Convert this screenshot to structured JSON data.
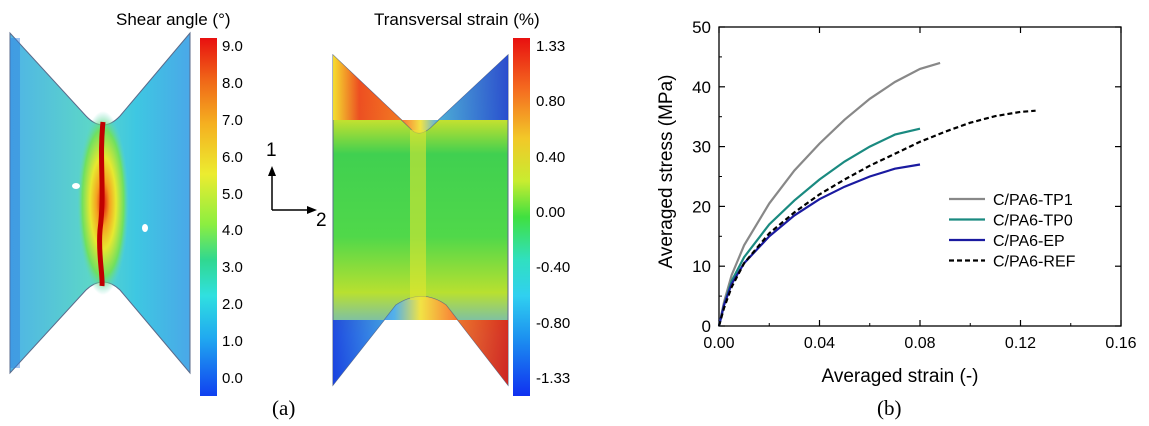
{
  "panel_a": {
    "label": "(a)",
    "shear": {
      "title": "Shear angle (°)",
      "ticks": [
        "9.0",
        "8.0",
        "7.0",
        "6.0",
        "5.0",
        "4.0",
        "3.0",
        "2.0",
        "1.0",
        "0.0"
      ]
    },
    "transversal": {
      "title": "Transversal strain (%)",
      "ticks": [
        "1.33",
        "0.80",
        "0.40",
        "0.00",
        "-0.40",
        "-0.80",
        "-1.33"
      ]
    },
    "axes": {
      "dir1": "1",
      "dir2": "2"
    }
  },
  "panel_b_label": "(b)",
  "chart_data": {
    "type": "line",
    "xlabel": "Averaged strain (-)",
    "ylabel": "Averaged stress (MPa)",
    "xlim": [
      0,
      0.16
    ],
    "ylim": [
      0,
      50
    ],
    "xticks": [
      "0.00",
      "0.04",
      "0.08",
      "0.12",
      "0.16"
    ],
    "yticks": [
      "0",
      "10",
      "20",
      "30",
      "40",
      "50"
    ],
    "legend_position": "right",
    "series": [
      {
        "name": "C/PA6-TP1",
        "color": "#888888",
        "dash": "solid",
        "x": [
          0,
          0.002,
          0.005,
          0.01,
          0.02,
          0.03,
          0.04,
          0.05,
          0.06,
          0.07,
          0.08,
          0.088
        ],
        "y": [
          0,
          4,
          8.5,
          13.5,
          20.5,
          26,
          30.5,
          34.5,
          38,
          40.8,
          43,
          44
        ]
      },
      {
        "name": "C/PA6-TP0",
        "color": "#1a8a80",
        "dash": "solid",
        "x": [
          0,
          0.002,
          0.005,
          0.01,
          0.02,
          0.03,
          0.04,
          0.05,
          0.06,
          0.07,
          0.08
        ],
        "y": [
          0,
          3.5,
          7.5,
          11.5,
          17,
          21,
          24.5,
          27.5,
          30,
          32,
          33
        ]
      },
      {
        "name": "C/PA6-EP",
        "color": "#1a1aa0",
        "dash": "solid",
        "x": [
          0,
          0.002,
          0.005,
          0.01,
          0.02,
          0.03,
          0.04,
          0.05,
          0.06,
          0.07,
          0.08
        ],
        "y": [
          0,
          3.5,
          7,
          10.5,
          15,
          18.5,
          21.2,
          23.3,
          25,
          26.3,
          27
        ]
      },
      {
        "name": "C/PA6-REF",
        "color": "#000000",
        "dash": "dashed",
        "x": [
          0,
          0.002,
          0.005,
          0.01,
          0.02,
          0.03,
          0.04,
          0.05,
          0.06,
          0.07,
          0.08,
          0.09,
          0.1,
          0.11,
          0.12,
          0.126
        ],
        "y": [
          0,
          3,
          6.5,
          10.5,
          15.5,
          19,
          22,
          24.5,
          26.8,
          28.8,
          30.8,
          32.5,
          34,
          35.1,
          35.8,
          36
        ]
      }
    ]
  }
}
